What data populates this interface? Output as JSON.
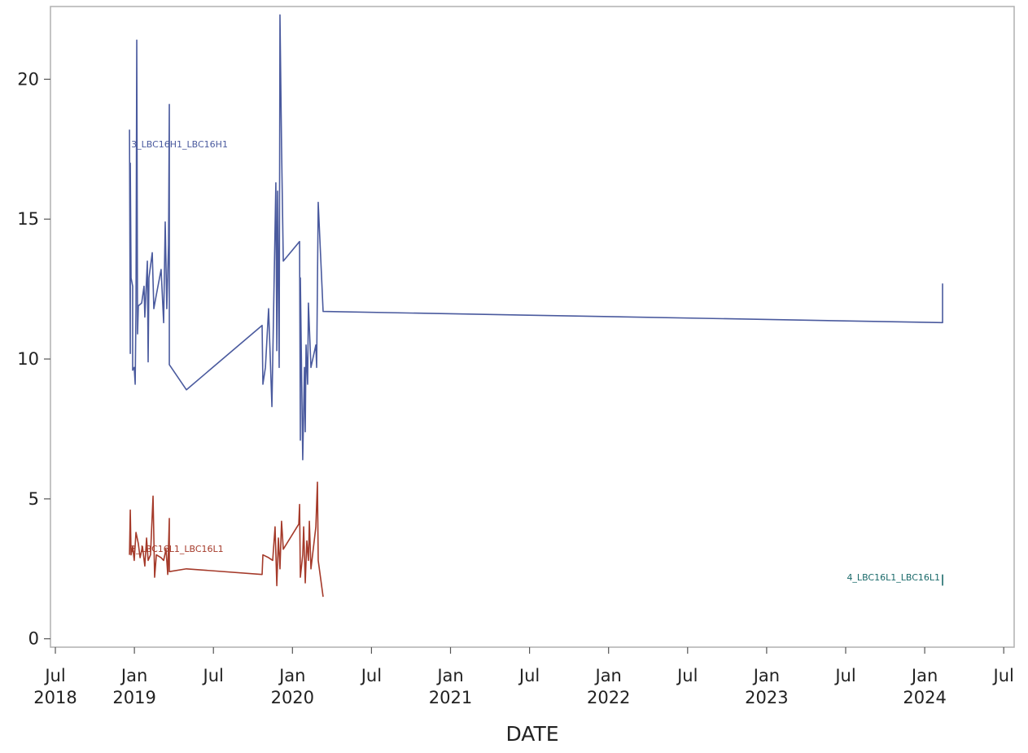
{
  "chart_data": {
    "type": "line",
    "xlabel": "DATE",
    "xlim": [
      2018.469,
      2024.566
    ],
    "ylim": [
      -0.3,
      22.6
    ],
    "xticks": [
      {
        "value": 2018.5,
        "label": "Jul 2018"
      },
      {
        "value": 2019.0,
        "label": "Jan 2019"
      },
      {
        "value": 2019.5,
        "label": "Jul"
      },
      {
        "value": 2020.0,
        "label": "Jan 2020"
      },
      {
        "value": 2020.5,
        "label": "Jul"
      },
      {
        "value": 2021.0,
        "label": "Jan 2021"
      },
      {
        "value": 2021.5,
        "label": "Jul"
      },
      {
        "value": 2022.0,
        "label": "Jan 2022"
      },
      {
        "value": 2022.5,
        "label": "Jul"
      },
      {
        "value": 2023.0,
        "label": "Jan 2023"
      },
      {
        "value": 2023.5,
        "label": "Jul"
      },
      {
        "value": 2024.0,
        "label": "Jan 2024"
      },
      {
        "value": 2024.5,
        "label": "Jul"
      }
    ],
    "yticks": [
      0,
      5,
      10,
      15,
      20
    ],
    "grid": false,
    "series": [
      {
        "name": "3_LBC16H1_LBC16H1",
        "color": "#4a5a9e",
        "x": [
          2018.969,
          2018.974,
          2018.974,
          2018.979,
          2018.989,
          2018.989,
          2018.999,
          2019.005,
          2019.01,
          2019.015,
          2019.02,
          2019.025,
          2019.046,
          2019.061,
          2019.066,
          2019.082,
          2019.087,
          2019.092,
          2019.113,
          2019.123,
          2019.139,
          2019.169,
          2019.185,
          2019.195,
          2019.205,
          2019.216,
          2019.221,
          2019.221,
          2019.329,
          2019.808,
          2019.813,
          2019.829,
          2019.849,
          2019.87,
          2019.88,
          2019.895,
          2019.901,
          2019.906,
          2019.916,
          2019.921,
          2019.931,
          2019.942,
          2020.045,
          2020.05,
          2020.05,
          2020.065,
          2020.076,
          2020.081,
          2020.086,
          2020.096,
          2020.101,
          2020.117,
          2020.148,
          2020.153,
          2020.163,
          2020.194,
          2024.113,
          2024.113
        ],
        "values": [
          18.2,
          10.2,
          17.0,
          12.9,
          12.6,
          9.6,
          9.7,
          9.1,
          11.8,
          21.4,
          10.9,
          11.9,
          12.0,
          12.6,
          11.5,
          13.5,
          9.9,
          12.9,
          13.8,
          11.8,
          12.3,
          13.2,
          11.3,
          14.9,
          11.8,
          14.1,
          19.1,
          9.8,
          8.9,
          11.2,
          9.1,
          9.7,
          11.8,
          8.3,
          11.5,
          16.3,
          10.3,
          16.0,
          9.7,
          22.3,
          17.6,
          13.5,
          14.2,
          7.1,
          12.9,
          6.4,
          9.7,
          7.4,
          10.5,
          9.1,
          12.0,
          9.7,
          10.5,
          9.7,
          15.6,
          11.7,
          11.3,
          12.7
        ]
      },
      {
        "name": "3_LBC16L1_LBC16L1",
        "color": "#a53a2a",
        "x": [
          2018.969,
          2018.974,
          2018.979,
          2018.989,
          2018.999,
          2019.01,
          2019.025,
          2019.036,
          2019.051,
          2019.066,
          2019.077,
          2019.087,
          2019.102,
          2019.118,
          2019.128,
          2019.139,
          2019.169,
          2019.185,
          2019.2,
          2019.211,
          2019.221,
          2019.221,
          2019.329,
          2019.808,
          2019.813,
          2019.849,
          2019.875,
          2019.89,
          2019.901,
          2019.911,
          2019.921,
          2019.931,
          2019.942,
          2020.04,
          2020.045,
          2020.05,
          2020.065,
          2020.071,
          2020.081,
          2020.091,
          2020.101,
          2020.107,
          2020.117,
          2020.148,
          2020.158,
          2020.163,
          2020.194
        ],
        "values": [
          3.0,
          4.6,
          3.0,
          3.3,
          2.8,
          3.8,
          3.4,
          2.9,
          3.3,
          2.6,
          3.6,
          2.8,
          3.0,
          5.1,
          2.2,
          3.0,
          2.9,
          2.8,
          3.2,
          2.3,
          4.3,
          2.4,
          2.5,
          2.3,
          3.0,
          2.9,
          2.8,
          4.0,
          1.9,
          3.6,
          2.5,
          4.2,
          3.2,
          4.1,
          4.8,
          2.2,
          3.0,
          4.0,
          2.0,
          3.5,
          2.8,
          4.2,
          2.5,
          4.0,
          5.6,
          2.8,
          1.5
        ]
      },
      {
        "name": "4_LBC16L1_LBC16L1",
        "color": "#1a6a6a",
        "x": [
          2024.113,
          2024.113
        ],
        "values": [
          2.3,
          1.9
        ]
      }
    ]
  }
}
